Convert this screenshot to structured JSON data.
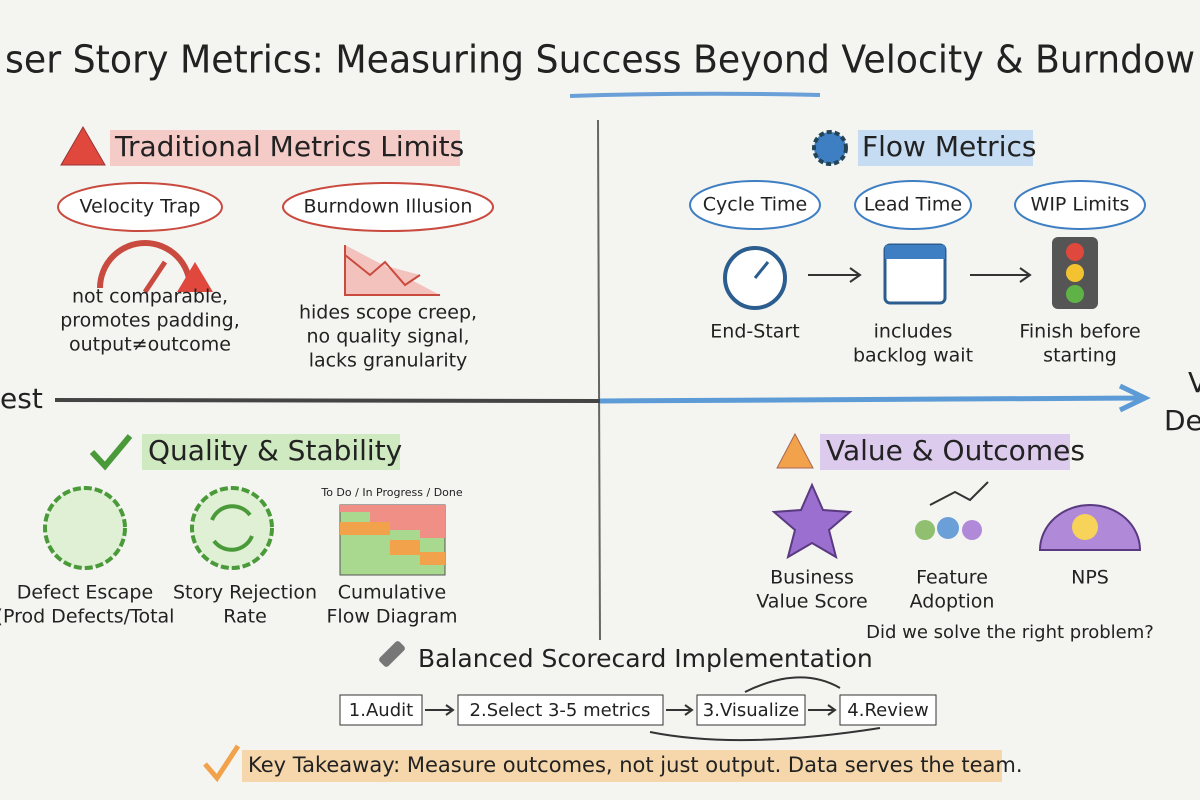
{
  "title": "ser Story Metrics: Measuring Success Beyond Velocity & Burndow",
  "axis": {
    "left": "est",
    "right": [
      "V",
      "Del"
    ]
  },
  "traditional": {
    "title": "Traditional Metrics Limits",
    "items": [
      {
        "label": "Velocity Trap",
        "lines": [
          "not comparable,",
          "promotes padding,",
          "output≠outcome"
        ]
      },
      {
        "label": "Burndown Illusion",
        "lines": [
          "hides scope creep,",
          "no quality signal,",
          "lacks granularity"
        ]
      }
    ]
  },
  "flow": {
    "title": "Flow Metrics",
    "items": [
      {
        "label": "Cycle Time",
        "lines": [
          "End-Start"
        ]
      },
      {
        "label": "Lead Time",
        "lines": [
          "includes",
          "backlog wait"
        ]
      },
      {
        "label": "WIP Limits",
        "lines": [
          "Finish before",
          "starting"
        ]
      }
    ]
  },
  "quality": {
    "title": "Quality & Stability",
    "chart_header": "To Do / In Progress / Done",
    "items": [
      {
        "lines": [
          "Defect Escape",
          "(Prod Defects/Total"
        ]
      },
      {
        "lines": [
          "Story Rejection",
          "Rate"
        ]
      },
      {
        "lines": [
          "Cumulative",
          "Flow Diagram"
        ]
      }
    ]
  },
  "value": {
    "title": "Value & Outcomes",
    "items": [
      {
        "lines": [
          "Business",
          "Value Score"
        ]
      },
      {
        "lines": [
          "Feature",
          "Adoption"
        ]
      },
      {
        "lines": [
          "NPS"
        ]
      }
    ],
    "question": "Did we solve the right problem?"
  },
  "scorecard": {
    "title": "Balanced Scorecard Implementation",
    "steps": [
      "1.Audit",
      "2.Select 3-5 metrics",
      "3.Visualize",
      "4.Review"
    ]
  },
  "takeaway": "Key Takeaway: Measure outcomes, not just output. Data serves the team."
}
